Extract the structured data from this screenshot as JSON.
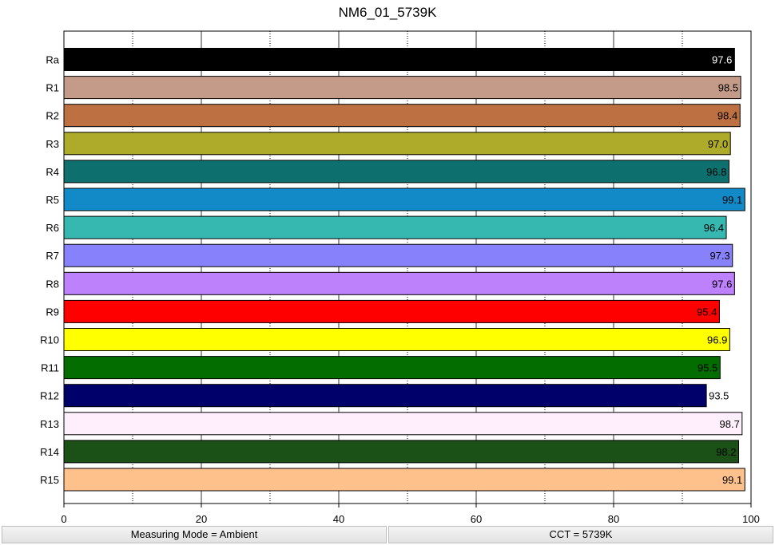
{
  "chart_data": {
    "type": "bar",
    "orientation": "horizontal",
    "title": "NM6_01_5739K",
    "categories": [
      "Ra",
      "R1",
      "R2",
      "R3",
      "R4",
      "R5",
      "R6",
      "R7",
      "R8",
      "R9",
      "R10",
      "R11",
      "R12",
      "R13",
      "R14",
      "R15"
    ],
    "values": [
      97.6,
      98.5,
      98.4,
      97.0,
      96.8,
      99.1,
      96.4,
      97.3,
      97.6,
      95.4,
      96.9,
      95.5,
      93.5,
      98.7,
      98.2,
      99.1
    ],
    "value_labels": [
      "97.6",
      "98.5",
      "98.4",
      "97.0",
      "96.8",
      "99.1",
      "96.4",
      "97.3",
      "97.6",
      "95.4",
      "96.9",
      "95.5",
      "93.5",
      "98.7",
      "98.2",
      "99.1"
    ],
    "colors": [
      "#000000",
      "#c49a88",
      "#bd7142",
      "#aeaa2a",
      "#0e706e",
      "#128ac8",
      "#36b8b0",
      "#8782fc",
      "#bd81fc",
      "#ff0000",
      "#ffff00",
      "#036d00",
      "#00006a",
      "#ffeffc",
      "#1b5016",
      "#ffc18b"
    ],
    "label_colors": [
      "#ffffff",
      "#000000",
      "#000000",
      "#000000",
      "#000000",
      "#000000",
      "#000000",
      "#000000",
      "#000000",
      "#000000",
      "#000000",
      "#000000",
      "#000000",
      "#000000",
      "#000000",
      "#000000"
    ],
    "xlim": [
      0,
      100
    ],
    "xticks": [
      0,
      20,
      40,
      60,
      80,
      100
    ],
    "minor_grid": [
      10,
      30,
      50,
      70,
      90
    ],
    "major_grid": [
      20,
      40,
      60,
      80
    ],
    "xlabel": "",
    "ylabel": ""
  },
  "status_bar": {
    "left": "Measuring Mode = Ambient",
    "right": "CCT = 5739K"
  }
}
